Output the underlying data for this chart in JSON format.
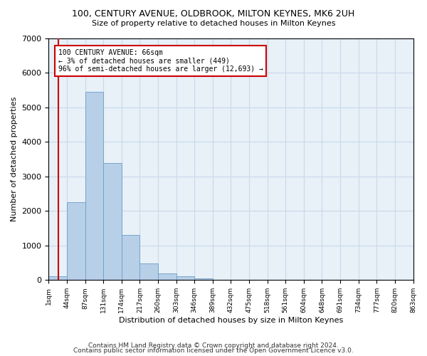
{
  "title": "100, CENTURY AVENUE, OLDBROOK, MILTON KEYNES, MK6 2UH",
  "subtitle": "Size of property relative to detached houses in Milton Keynes",
  "xlabel": "Distribution of detached houses by size in Milton Keynes",
  "ylabel": "Number of detached properties",
  "bar_values": [
    100,
    2250,
    5450,
    3400,
    1300,
    480,
    200,
    100,
    50,
    0,
    0,
    0,
    0,
    0,
    0,
    0,
    0,
    0,
    0,
    0
  ],
  "tick_labels": [
    "1sqm",
    "44sqm",
    "87sqm",
    "131sqm",
    "174sqm",
    "217sqm",
    "260sqm",
    "303sqm",
    "346sqm",
    "389sqm",
    "432sqm",
    "475sqm",
    "518sqm",
    "561sqm",
    "604sqm",
    "648sqm",
    "691sqm",
    "734sqm",
    "777sqm",
    "820sqm",
    "863sqm"
  ],
  "bar_color": "#b8cfe8",
  "bar_edge_color": "#6a9ec5",
  "vline_x_index": 0.52,
  "vline_color": "#cc0000",
  "annotation_text": "100 CENTURY AVENUE: 66sqm\n← 3% of detached houses are smaller (449)\n96% of semi-detached houses are larger (12,693) →",
  "annotation_box_color": "#cc0000",
  "ylim": [
    0,
    7000
  ],
  "yticks": [
    0,
    1000,
    2000,
    3000,
    4000,
    5000,
    6000,
    7000
  ],
  "grid_color": "#c8daea",
  "bg_color": "#e8f0f8",
  "footer_line1": "Contains HM Land Registry data © Crown copyright and database right 2024.",
  "footer_line2": "Contains public sector information licensed under the Open Government Licence v3.0."
}
